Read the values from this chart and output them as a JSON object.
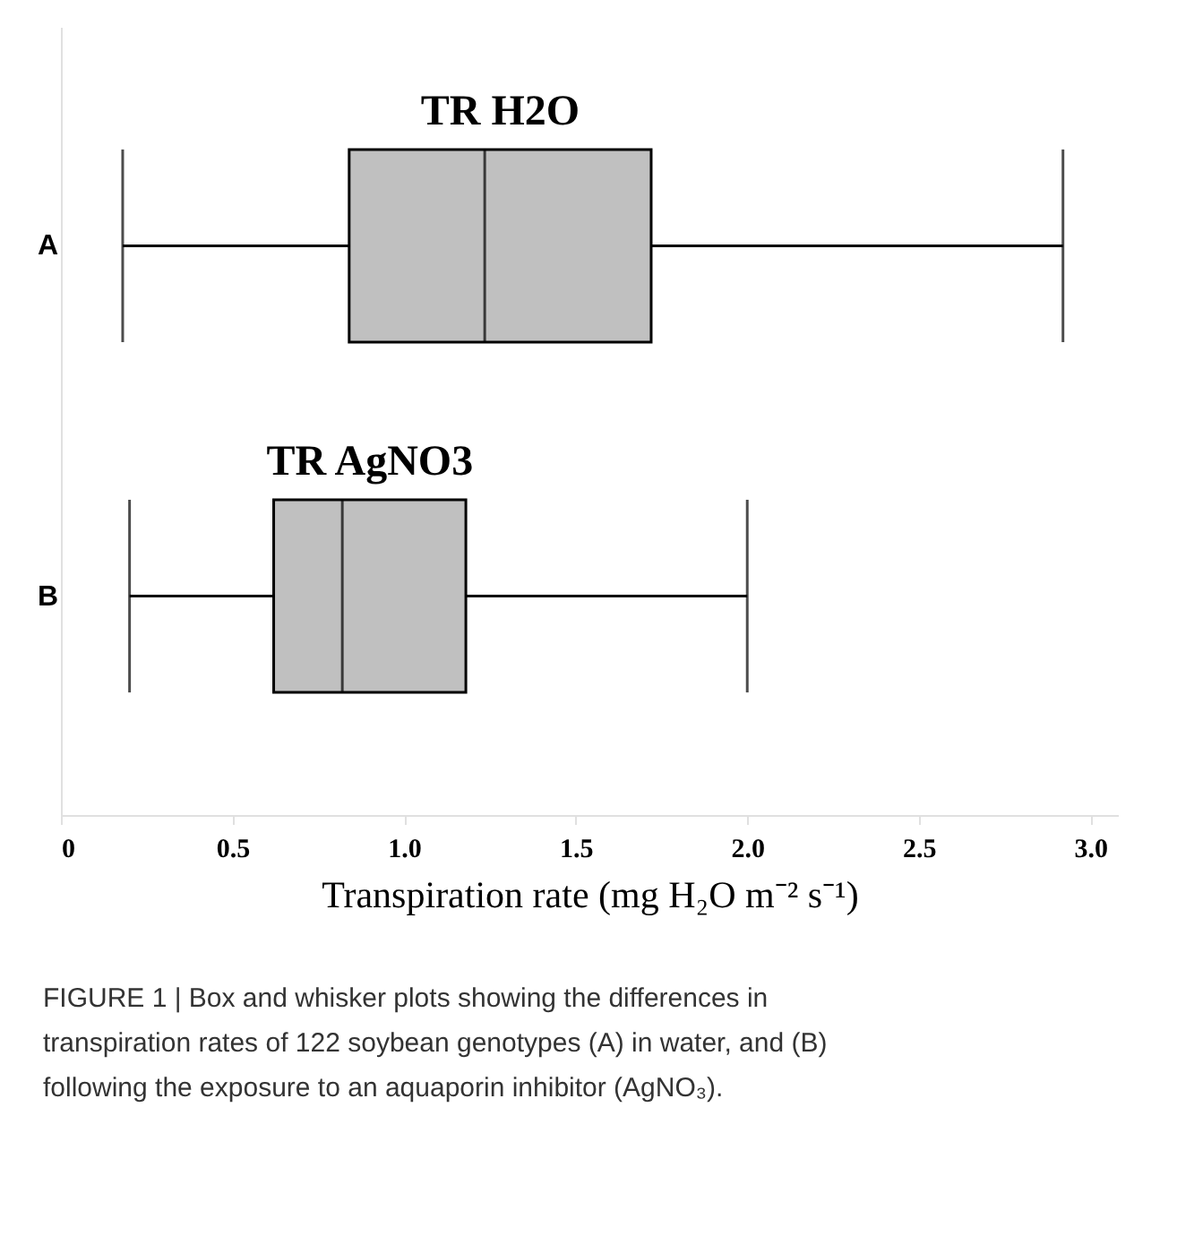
{
  "chart_data": {
    "type": "box",
    "orientation": "horizontal",
    "categories": [
      "A",
      "B"
    ],
    "boxes": [
      {
        "low": 0.18,
        "q1": 0.84,
        "median": 1.235,
        "q3": 1.72,
        "high": 2.92
      },
      {
        "low": 0.2,
        "q1": 0.62,
        "median": 0.82,
        "q3": 1.18,
        "high": 2.0
      }
    ],
    "color": "#c0c0c0",
    "xlabel": "Transpiration rate (mg H₂O m⁻² s⁻¹)",
    "xlim": [
      0,
      3.08
    ],
    "xticks": [
      0,
      0.5,
      {
        "value": 1.0,
        "label": "1.0"
      },
      1.5,
      {
        "value": 2.0,
        "label": "2.0"
      },
      2.5,
      {
        "value": 3.0,
        "label": "3.0"
      }
    ],
    "grid": false,
    "annotations": [
      "TR H2O",
      "TR AgNO3",
      "FIGURE 1 | Box and whisker plots showing the differences in transpiration rates of 122 soybean genotypes (A) in water, and (B) following the exposure to an aquaporin inhibitor (AgNO₃)."
    ]
  }
}
